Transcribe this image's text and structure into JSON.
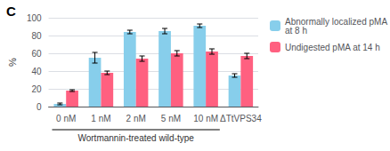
{
  "chart_data": {
    "type": "bar",
    "title": "C",
    "categories": [
      "0 nM",
      "1 nM",
      "2 nM",
      "5 nM",
      "10 nM",
      "ΔTtVPS34"
    ],
    "series": [
      {
        "name": "Abnormally localized pMA\nat 8 h",
        "color": "#87CEEB",
        "values": [
          3,
          55,
          84,
          85,
          91,
          35
        ],
        "errors": [
          1,
          6,
          2,
          3,
          2,
          2
        ]
      },
      {
        "name": "Undigested pMA at 14 h",
        "color": "#FF6080",
        "values": [
          18,
          38,
          54,
          60,
          62,
          57
        ],
        "errors": [
          1,
          2,
          3,
          3,
          3,
          3
        ]
      }
    ],
    "ylabel": "%",
    "xlabel": "Wortmannin-treated wild-type",
    "ylim": [
      0,
      100
    ],
    "yticks": [
      0,
      20,
      40,
      60,
      80,
      100
    ],
    "grid": true,
    "legend": "right"
  }
}
